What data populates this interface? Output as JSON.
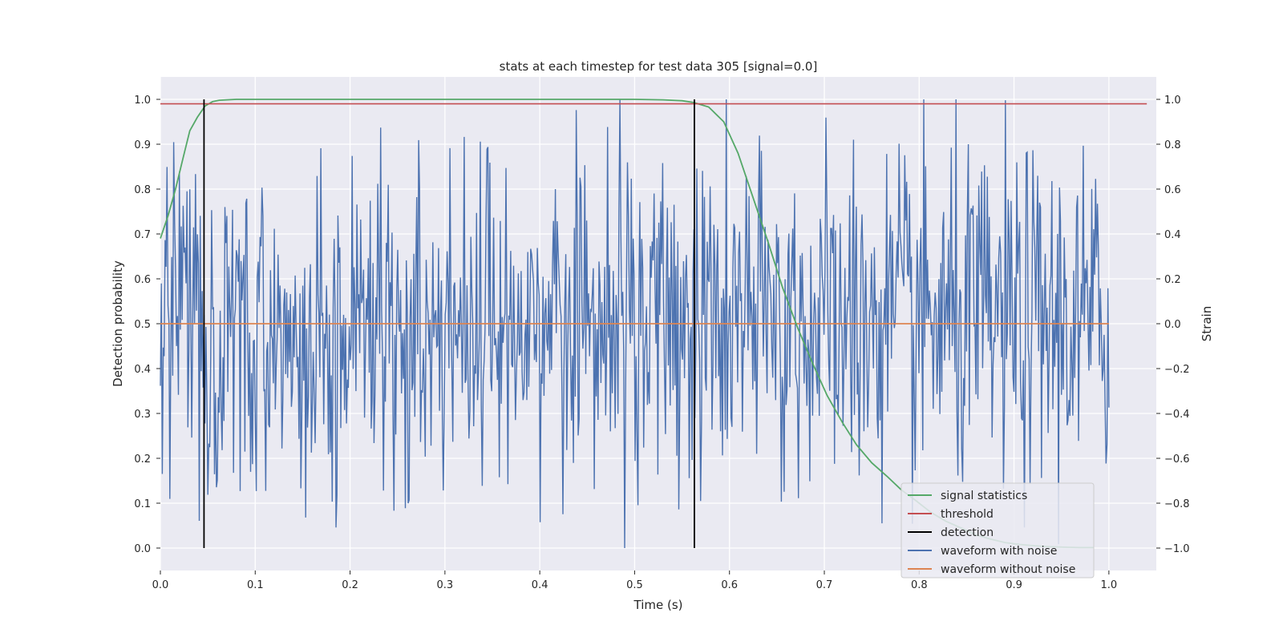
{
  "chart_data": {
    "type": "line",
    "title": "stats at each timestep for test data 305 [signal=0.0]",
    "xlabel": "Time (s)",
    "ylabel": "Detection probability",
    "y2label": "Strain",
    "xlim": [
      0.0,
      1.05
    ],
    "ylim": [
      -0.05,
      1.05
    ],
    "y2lim": [
      -1.1,
      1.1
    ],
    "x_ticks": [
      "0.0",
      "0.1",
      "0.2",
      "0.3",
      "0.4",
      "0.5",
      "0.6",
      "0.7",
      "0.8",
      "0.9",
      "1.0"
    ],
    "y_ticks": [
      "0.0",
      "0.1",
      "0.2",
      "0.3",
      "0.4",
      "0.5",
      "0.6",
      "0.7",
      "0.8",
      "0.9",
      "1.0"
    ],
    "y2_ticks": [
      "−1.0",
      "−0.8",
      "−0.6",
      "−0.4",
      "−0.2",
      "0.0",
      "0.2",
      "0.4",
      "0.6",
      "0.8",
      "1.0"
    ],
    "grid": true,
    "legend_position": "lower-right",
    "series": [
      {
        "name": "signal statistics",
        "color": "#55a868",
        "axis": "left",
        "x": [
          0.0,
          0.008,
          0.016,
          0.024,
          0.031,
          0.039,
          0.047,
          0.055,
          0.062,
          0.08,
          0.1,
          0.2,
          0.3,
          0.4,
          0.5,
          0.53,
          0.55,
          0.562,
          0.578,
          0.594,
          0.609,
          0.625,
          0.641,
          0.656,
          0.672,
          0.688,
          0.703,
          0.719,
          0.734,
          0.75,
          0.766,
          0.781,
          0.797,
          0.812,
          0.828,
          0.844,
          0.859,
          0.875,
          0.891,
          0.906,
          0.922,
          0.938,
          0.953,
          0.969,
          0.984
        ],
        "y": [
          0.69,
          0.74,
          0.8,
          0.87,
          0.93,
          0.96,
          0.985,
          0.995,
          0.998,
          1.0,
          1.0,
          1.0,
          1.0,
          1.0,
          1.0,
          0.999,
          0.997,
          0.993,
          0.983,
          0.95,
          0.88,
          0.78,
          0.68,
          0.58,
          0.49,
          0.41,
          0.34,
          0.28,
          0.23,
          0.19,
          0.16,
          0.13,
          0.105,
          0.08,
          0.06,
          0.045,
          0.03,
          0.02,
          0.012,
          0.008,
          0.005,
          0.003,
          0.002,
          0.001,
          0.001
        ]
      },
      {
        "name": "threshold",
        "color": "#c44e52",
        "axis": "left",
        "x": [
          0.0,
          1.04
        ],
        "y": [
          0.99,
          0.99
        ]
      },
      {
        "name": "detection",
        "color": "#000000",
        "axis": "left",
        "x": [
          0.046,
          0.563
        ],
        "y": [
          0.0,
          1.0
        ]
      },
      {
        "name": "waveform with noise",
        "color": "#4c72b0",
        "axis": "right",
        "noise": true,
        "x_range": [
          0.0,
          1.0
        ],
        "y_range": [
          -1.0,
          1.0
        ],
        "n_points": 1000
      },
      {
        "name": "waveform without noise",
        "color": "#dd8452",
        "axis": "right",
        "x": [
          0.0,
          1.0
        ],
        "y": [
          0.0,
          0.0
        ]
      }
    ]
  }
}
